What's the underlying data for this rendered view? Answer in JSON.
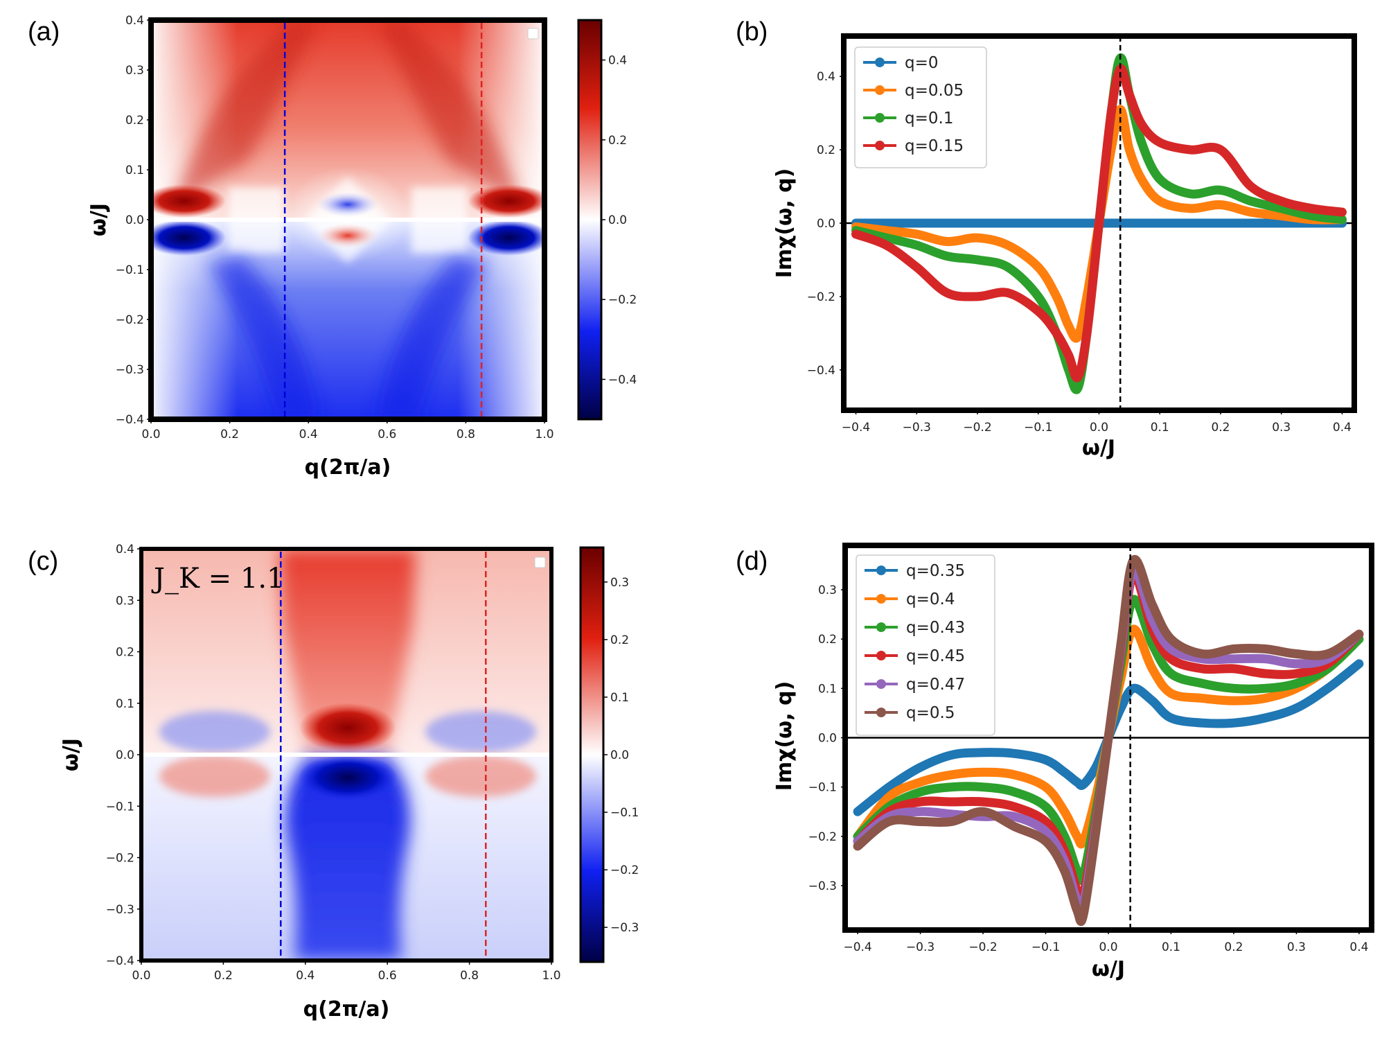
{
  "chart_data": [
    {
      "panel": "(a)",
      "type": "heatmap",
      "title": "",
      "xlabel": "q(2π/a)",
      "ylabel": "ω/J",
      "xlim": [
        0.0,
        1.0
      ],
      "ylim": [
        -0.4,
        0.4
      ],
      "xticks": [
        "0.0",
        "0.2",
        "0.4",
        "0.6",
        "0.8",
        "1.0"
      ],
      "yticks": [
        "0.4",
        "0.3",
        "0.2",
        "0.1",
        "0.0",
        "−0.1",
        "−0.2",
        "−0.3",
        "−0.4"
      ],
      "colorbar": {
        "cmap": "seismic",
        "vmin": -0.5,
        "vmax": 0.5,
        "ticks": [
          "0.4",
          "0.2",
          "0.0",
          "−0.2",
          "−0.4"
        ]
      },
      "vlines": [
        {
          "x": 0.34,
          "color": "#0000dd"
        },
        {
          "x": 0.84,
          "color": "#dd2222"
        }
      ]
    },
    {
      "panel": "(b)",
      "type": "line",
      "title": "",
      "xlabel": "ω/J",
      "ylabel": "Imχ(ω, q)",
      "xlim": [
        -0.42,
        0.42
      ],
      "ylim": [
        -0.51,
        0.51
      ],
      "xticks": [
        "−0.4",
        "−0.3",
        "−0.2",
        "−0.1",
        "0.0",
        "0.1",
        "0.2",
        "0.3",
        "0.4"
      ],
      "yticks": [
        "0.4",
        "0.2",
        "0.0",
        "−0.2",
        "−0.4"
      ],
      "vline_x": 0.035,
      "legend": "top-left",
      "x": [
        -0.4,
        -0.35,
        -0.3,
        -0.25,
        -0.2,
        -0.15,
        -0.1,
        -0.07,
        -0.05,
        -0.035,
        -0.02,
        0.0,
        0.02,
        0.035,
        0.05,
        0.07,
        0.1,
        0.15,
        0.2,
        0.25,
        0.3,
        0.35,
        0.4
      ],
      "series": [
        {
          "name": "q=0",
          "color": "#1f77b4",
          "values": [
            0,
            0,
            0,
            0,
            0,
            0,
            0,
            0,
            0,
            0,
            0,
            0,
            0,
            0,
            0,
            0,
            0,
            0,
            0,
            0,
            0,
            0,
            0
          ]
        },
        {
          "name": "q=0.05",
          "color": "#ff7f0e",
          "values": [
            -0.01,
            -0.02,
            -0.03,
            -0.05,
            -0.04,
            -0.06,
            -0.12,
            -0.2,
            -0.28,
            -0.31,
            -0.2,
            0.0,
            0.2,
            0.31,
            0.2,
            0.12,
            0.06,
            0.04,
            0.05,
            0.03,
            0.02,
            0.01,
            0.01
          ]
        },
        {
          "name": "q=0.1",
          "color": "#2ca02c",
          "values": [
            -0.02,
            -0.04,
            -0.06,
            -0.09,
            -0.1,
            -0.12,
            -0.2,
            -0.3,
            -0.4,
            -0.45,
            -0.3,
            0.0,
            0.3,
            0.45,
            0.35,
            0.22,
            0.12,
            0.08,
            0.09,
            0.06,
            0.04,
            0.02,
            0.01
          ]
        },
        {
          "name": "q=0.15",
          "color": "#d62728",
          "values": [
            -0.03,
            -0.06,
            -0.12,
            -0.19,
            -0.2,
            -0.19,
            -0.24,
            -0.3,
            -0.36,
            -0.42,
            -0.3,
            0.0,
            0.3,
            0.42,
            0.35,
            0.27,
            0.22,
            0.2,
            0.2,
            0.1,
            0.06,
            0.04,
            0.03
          ]
        }
      ]
    },
    {
      "panel": "(c)",
      "type": "heatmap",
      "title": "",
      "annotation": "J_K = 1.1",
      "xlabel": "q(2π/a)",
      "ylabel": "ω/J",
      "xlim": [
        0.0,
        1.0
      ],
      "ylim": [
        -0.4,
        0.4
      ],
      "xticks": [
        "0.0",
        "0.2",
        "0.4",
        "0.6",
        "0.8",
        "1.0"
      ],
      "yticks": [
        "0.4",
        "0.3",
        "0.2",
        "0.1",
        "0.0",
        "−0.1",
        "−0.2",
        "−0.3",
        "−0.4"
      ],
      "colorbar": {
        "cmap": "seismic",
        "vmin": -0.36,
        "vmax": 0.36,
        "ticks": [
          "0.3",
          "0.2",
          "0.1",
          "0.0",
          "−0.1",
          "−0.2",
          "−0.3"
        ]
      },
      "vlines": [
        {
          "x": 0.34,
          "color": "#0000dd"
        },
        {
          "x": 0.84,
          "color": "#dd2222"
        }
      ]
    },
    {
      "panel": "(d)",
      "type": "line",
      "title": "",
      "xlabel": "ω/J",
      "ylabel": "Imχ(ω, q)",
      "xlim": [
        -0.42,
        0.42
      ],
      "ylim": [
        -0.39,
        0.39
      ],
      "xticks": [
        "−0.4",
        "−0.3",
        "−0.2",
        "−0.1",
        "0.0",
        "0.1",
        "0.2",
        "0.3",
        "0.4"
      ],
      "yticks": [
        "0.3",
        "0.2",
        "0.1",
        "0.0",
        "−0.1",
        "−0.2",
        "−0.3"
      ],
      "vline_x": 0.035,
      "legend": "top-left",
      "x": [
        -0.4,
        -0.35,
        -0.3,
        -0.25,
        -0.2,
        -0.15,
        -0.1,
        -0.07,
        -0.05,
        -0.04,
        -0.02,
        0.0,
        0.02,
        0.04,
        0.07,
        0.1,
        0.15,
        0.2,
        0.25,
        0.3,
        0.35,
        0.4
      ],
      "series": [
        {
          "name": "q=0.35",
          "color": "#1f77b4",
          "values": [
            -0.15,
            -0.1,
            -0.06,
            -0.035,
            -0.03,
            -0.032,
            -0.045,
            -0.07,
            -0.09,
            -0.095,
            -0.06,
            0.0,
            0.06,
            0.1,
            0.075,
            0.04,
            0.03,
            0.03,
            0.04,
            0.06,
            0.1,
            0.15
          ]
        },
        {
          "name": "q=0.4",
          "color": "#ff7f0e",
          "values": [
            -0.2,
            -0.12,
            -0.09,
            -0.075,
            -0.07,
            -0.075,
            -0.1,
            -0.15,
            -0.2,
            -0.21,
            -0.12,
            0.0,
            0.12,
            0.22,
            0.14,
            0.09,
            0.08,
            0.075,
            0.08,
            0.1,
            0.14,
            0.2
          ]
        },
        {
          "name": "q=0.43",
          "color": "#2ca02c",
          "values": [
            -0.2,
            -0.14,
            -0.11,
            -0.1,
            -0.1,
            -0.11,
            -0.14,
            -0.2,
            -0.27,
            -0.28,
            -0.15,
            0.0,
            0.15,
            0.28,
            0.19,
            0.13,
            0.11,
            0.1,
            0.1,
            0.11,
            0.14,
            0.2
          ]
        },
        {
          "name": "q=0.45",
          "color": "#d62728",
          "values": [
            -0.21,
            -0.15,
            -0.13,
            -0.13,
            -0.13,
            -0.14,
            -0.17,
            -0.23,
            -0.31,
            -0.32,
            -0.17,
            0.0,
            0.17,
            0.33,
            0.22,
            0.16,
            0.14,
            0.14,
            0.13,
            0.13,
            0.15,
            0.21
          ]
        },
        {
          "name": "q=0.47",
          "color": "#9467bd",
          "values": [
            -0.21,
            -0.16,
            -0.15,
            -0.155,
            -0.16,
            -0.16,
            -0.19,
            -0.25,
            -0.33,
            -0.34,
            -0.18,
            0.0,
            0.18,
            0.34,
            0.24,
            0.18,
            0.16,
            0.16,
            0.16,
            0.15,
            0.16,
            0.21
          ]
        },
        {
          "name": "q=0.5",
          "color": "#8c564b",
          "values": [
            -0.22,
            -0.17,
            -0.17,
            -0.17,
            -0.15,
            -0.18,
            -0.21,
            -0.27,
            -0.35,
            -0.36,
            -0.19,
            0.0,
            0.19,
            0.36,
            0.27,
            0.2,
            0.17,
            0.18,
            0.18,
            0.17,
            0.17,
            0.21
          ]
        }
      ]
    }
  ]
}
